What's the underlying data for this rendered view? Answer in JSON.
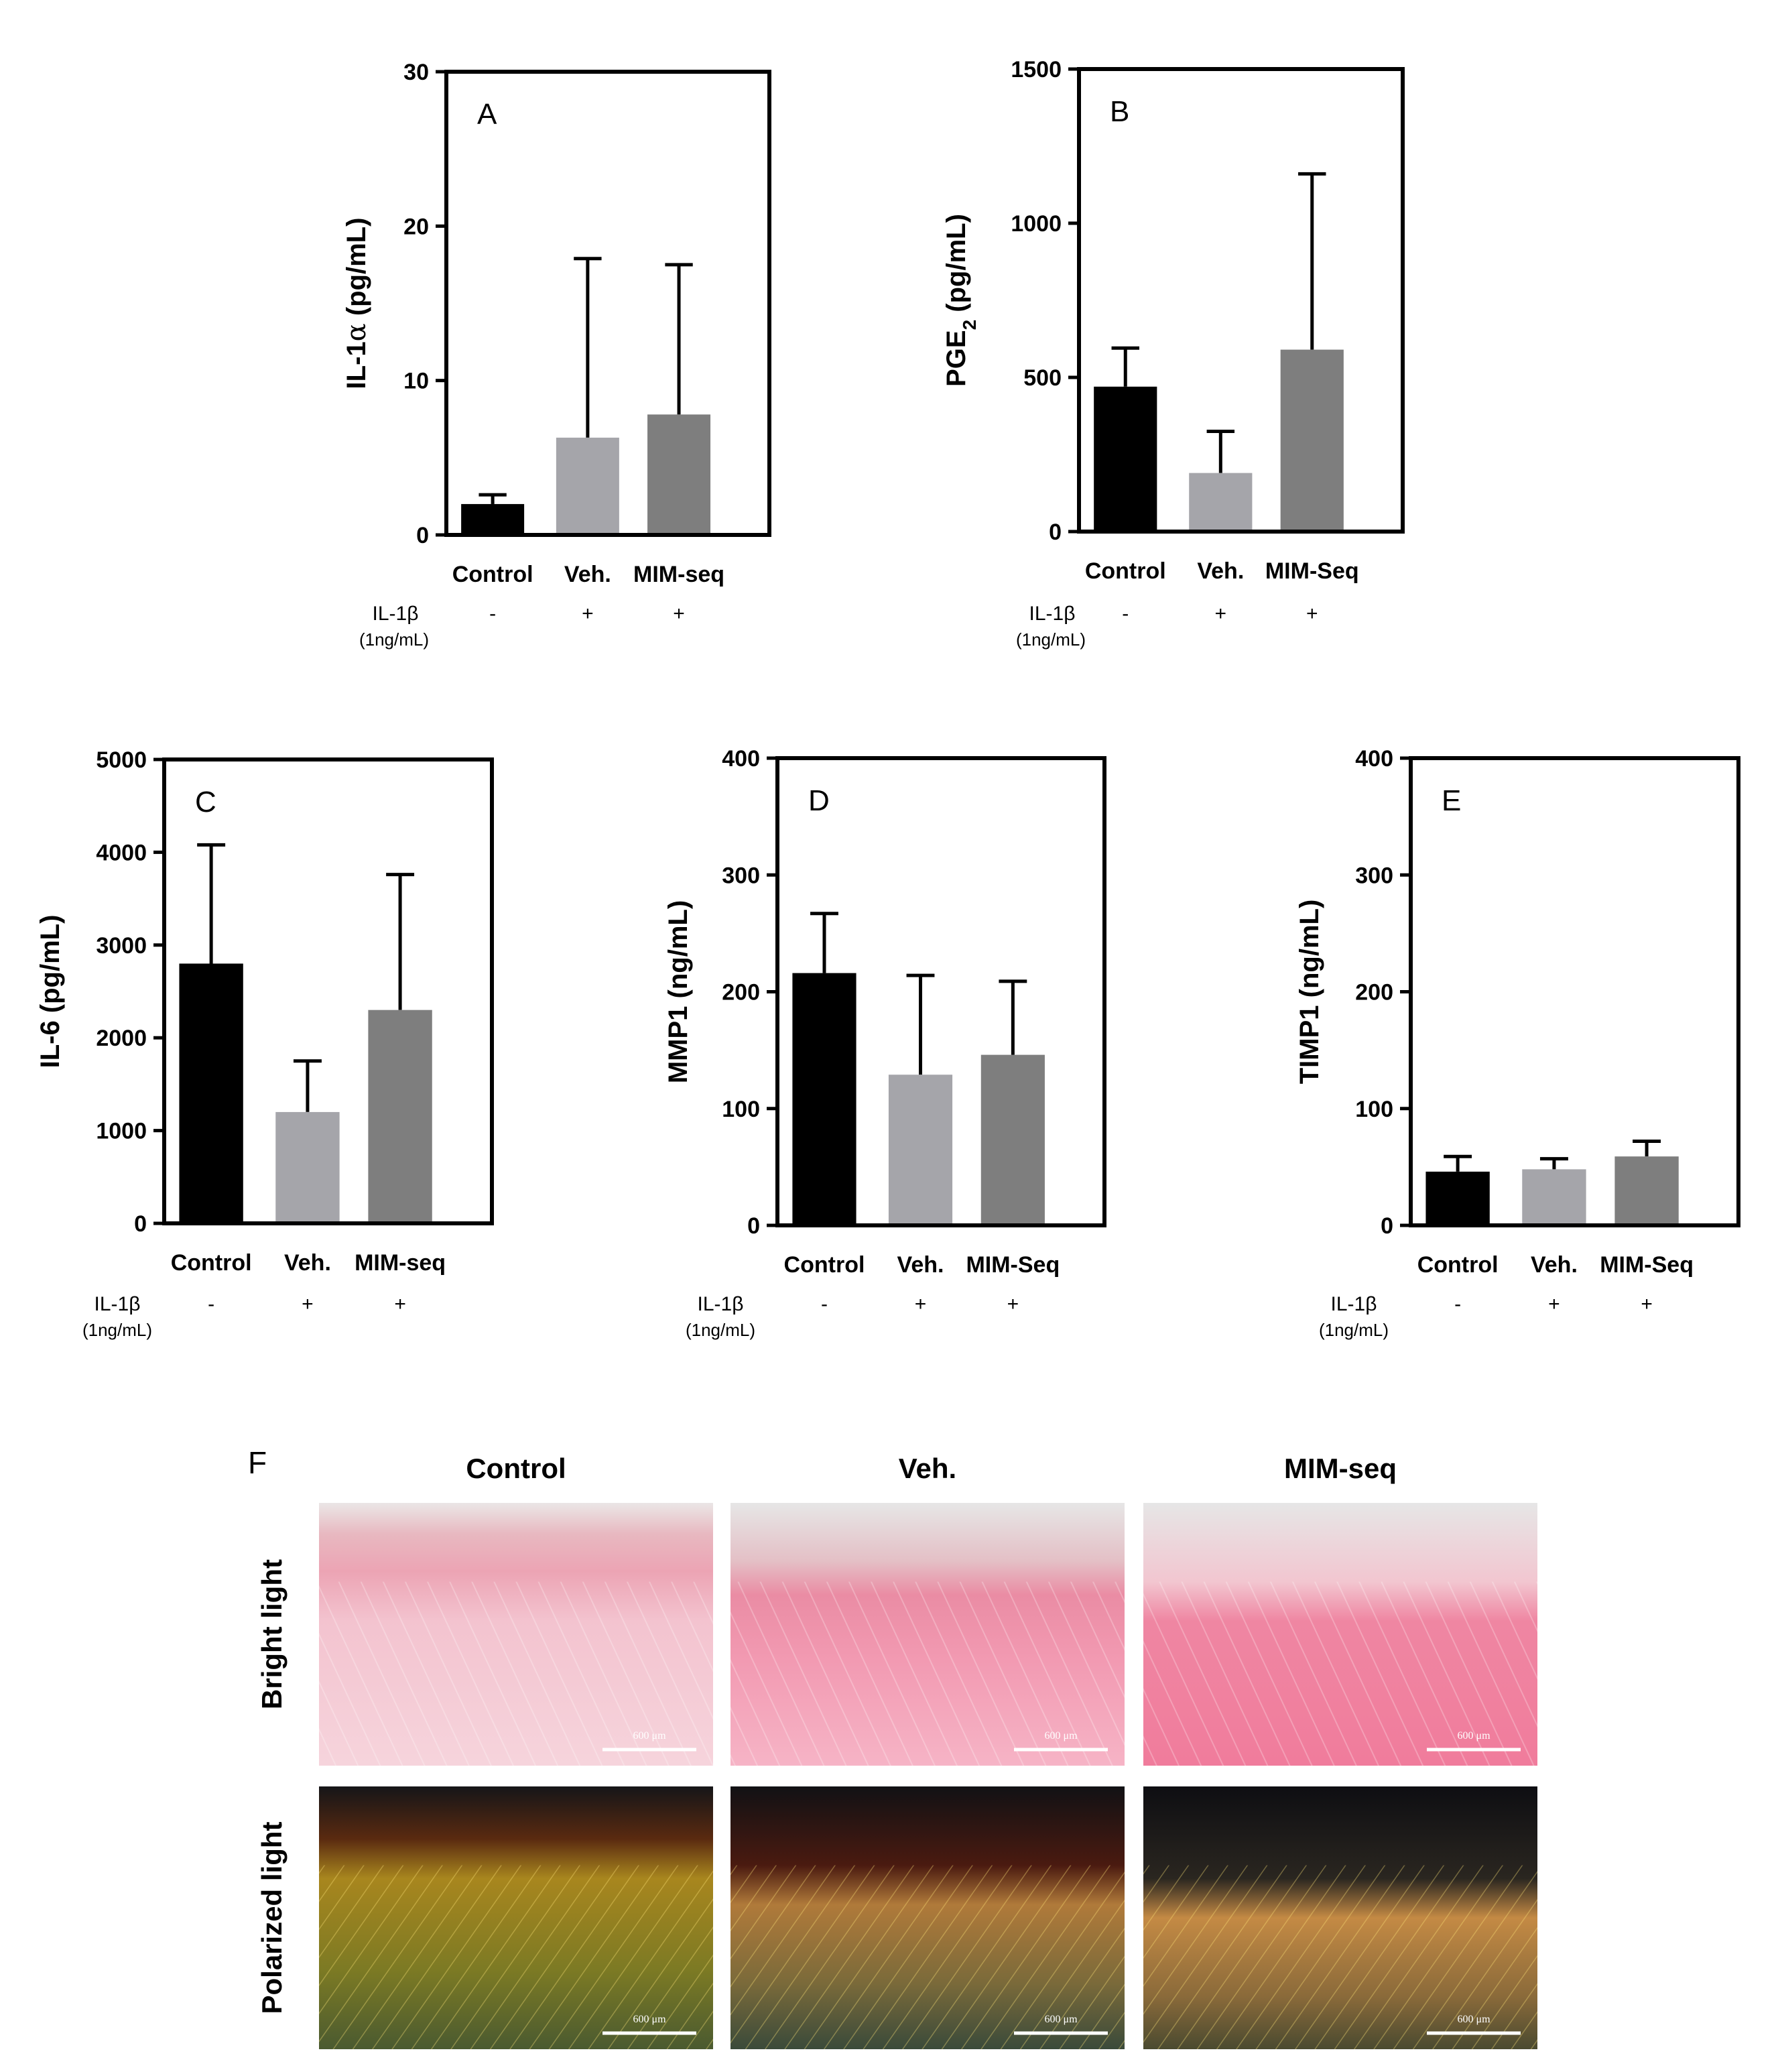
{
  "charts": [
    {
      "panel": "A",
      "type": "bar",
      "ylabel_main": "IL-1",
      "ylabel_greek": "α",
      "ylabel_sub": "",
      "ylabel_rest": " (pg/mL)",
      "categories": [
        "Control",
        "Veh.",
        "MIM-seq"
      ],
      "treatment_label": "IL-1β",
      "treatment_sub": "(1ng/mL)",
      "treatment_signs": [
        "-",
        "+",
        "+"
      ],
      "ylim": [
        0,
        30
      ],
      "yticks": [
        0,
        10,
        20,
        30
      ]
    },
    {
      "panel": "B",
      "type": "bar",
      "ylabel_main": "PGE",
      "ylabel_greek": "",
      "ylabel_sub": "2",
      "ylabel_rest": " (pg/mL)",
      "categories": [
        "Control",
        "Veh.",
        "MIM-Seq"
      ],
      "treatment_label": "IL-1β",
      "treatment_sub": "(1ng/mL)",
      "treatment_signs": [
        "-",
        "+",
        "+"
      ],
      "ylim": [
        0,
        1500
      ],
      "yticks": [
        0,
        500,
        1000,
        1500
      ]
    },
    {
      "panel": "C",
      "type": "bar",
      "ylabel_main": "IL-6 (pg/mL)",
      "ylabel_greek": "",
      "ylabel_sub": "",
      "ylabel_rest": "",
      "categories": [
        "Control",
        "Veh.",
        "MIM-seq"
      ],
      "treatment_label": "IL-1β",
      "treatment_sub": "(1ng/mL)",
      "treatment_signs": [
        "-",
        "+",
        "+"
      ],
      "ylim": [
        0,
        5000
      ],
      "yticks": [
        0,
        1000,
        2000,
        3000,
        4000,
        5000
      ]
    },
    {
      "panel": "D",
      "type": "bar",
      "ylabel_main": "MMP1 (ng/mL)",
      "ylabel_greek": "",
      "ylabel_sub": "",
      "ylabel_rest": "",
      "categories": [
        "Control",
        "Veh.",
        "MIM-Seq"
      ],
      "treatment_label": "IL-1β",
      "treatment_sub": "(1ng/mL)",
      "treatment_signs": [
        "-",
        "+",
        "+"
      ],
      "ylim": [
        0,
        400
      ],
      "yticks": [
        0,
        100,
        200,
        300,
        400
      ]
    },
    {
      "panel": "E",
      "type": "bar",
      "ylabel_main": "TIMP1 (ng/mL)",
      "ylabel_greek": "",
      "ylabel_sub": "",
      "ylabel_rest": "",
      "categories": [
        "Control",
        "Veh.",
        "MIM-Seq"
      ],
      "treatment_label": "IL-1β",
      "treatment_sub": "(1ng/mL)",
      "treatment_signs": [
        "-",
        "+",
        "+"
      ],
      "ylim": [
        0,
        400
      ],
      "yticks": [
        0,
        100,
        200,
        300,
        400
      ]
    }
  ],
  "chart_data": [
    {
      "type": "bar",
      "panel": "A",
      "categories": [
        "Control",
        "Veh.",
        "MIM-seq"
      ],
      "values": [
        2.0,
        6.3,
        7.8
      ],
      "error_upper": [
        2.6,
        17.9,
        17.5
      ],
      "ylabel": "IL-1α (pg/mL)",
      "ylim": [
        0,
        30
      ]
    },
    {
      "type": "bar",
      "panel": "B",
      "categories": [
        "Control",
        "Veh.",
        "MIM-Seq"
      ],
      "values": [
        470,
        190,
        590
      ],
      "error_upper": [
        595,
        325,
        1160
      ],
      "ylabel": "PGE2 (pg/mL)",
      "ylim": [
        0,
        1500
      ]
    },
    {
      "type": "bar",
      "panel": "C",
      "categories": [
        "Control",
        "Veh.",
        "MIM-seq"
      ],
      "values": [
        2800,
        1200,
        2300
      ],
      "error_upper": [
        4080,
        1750,
        3760
      ],
      "ylabel": "IL-6 (pg/mL)",
      "ylim": [
        0,
        5000
      ]
    },
    {
      "type": "bar",
      "panel": "D",
      "categories": [
        "Control",
        "Veh.",
        "MIM-Seq"
      ],
      "values": [
        216,
        129,
        146
      ],
      "error_upper": [
        267,
        214,
        209
      ],
      "ylabel": "MMP1 (ng/mL)",
      "ylim": [
        0,
        400
      ]
    },
    {
      "type": "bar",
      "panel": "E",
      "categories": [
        "Control",
        "Veh.",
        "MIM-Seq"
      ],
      "values": [
        46,
        48,
        59
      ],
      "error_upper": [
        59,
        57,
        72
      ],
      "ylabel": "TIMP1 (ng/mL)",
      "ylim": [
        0,
        400
      ]
    }
  ],
  "bar_colors": [
    "#000000",
    "#a5a5aa",
    "#7e7e7e"
  ],
  "histology": {
    "panel": "F",
    "columns": [
      "Control",
      "Veh.",
      "MIM-seq"
    ],
    "rows": [
      "Bright light",
      "Polarized light"
    ],
    "scale_label": "600 μm"
  }
}
